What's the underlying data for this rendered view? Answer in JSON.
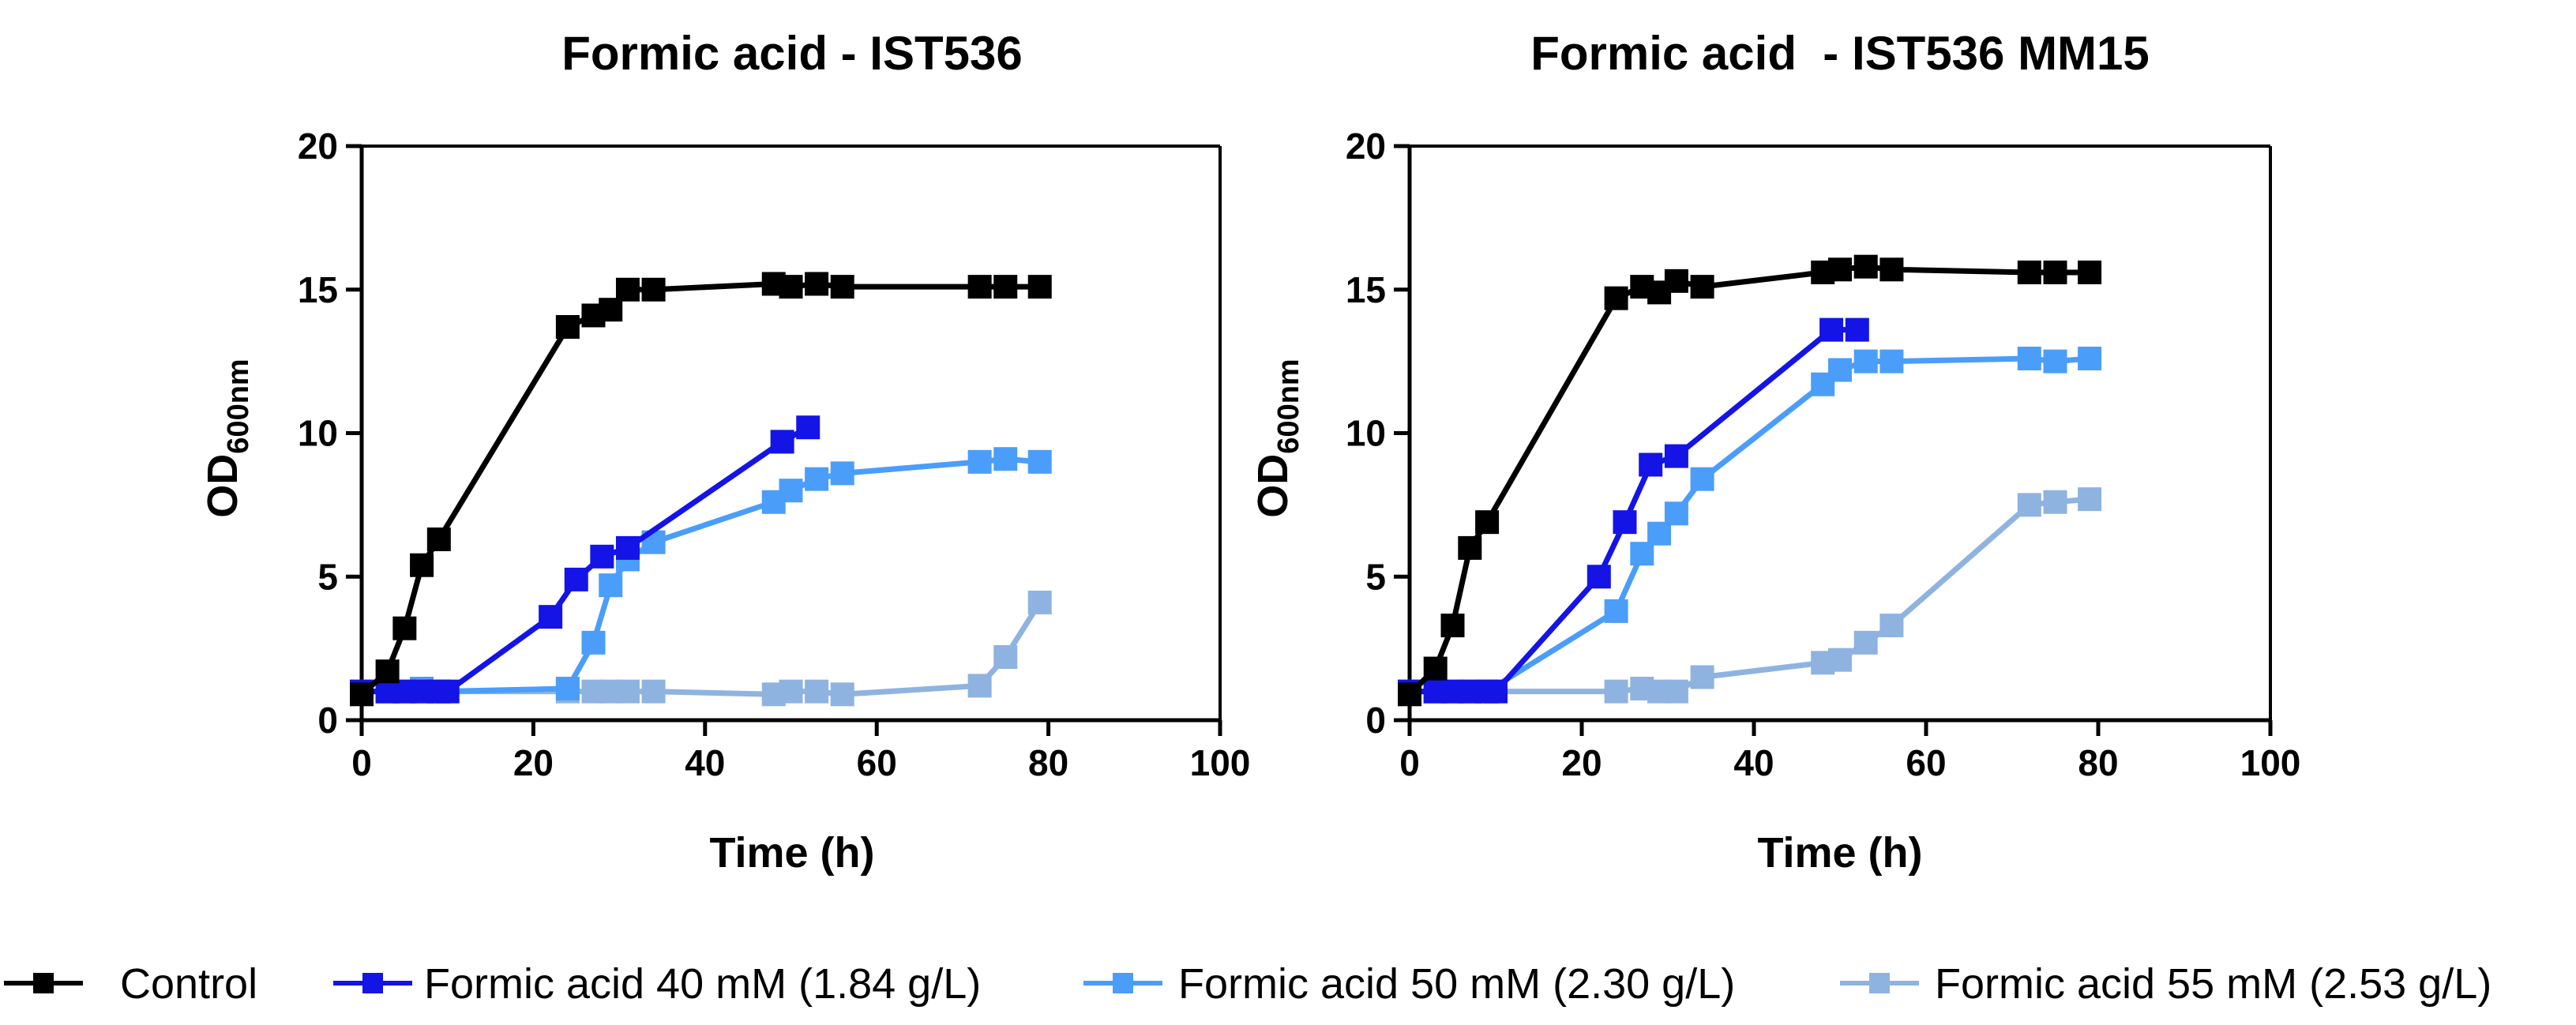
{
  "chart_data": [
    {
      "type": "line",
      "title": "Formic acid - IST536",
      "xlabel": "Time (h)",
      "ylabel_main": "OD",
      "ylabel_sub": "600nm",
      "xlim": [
        0,
        100
      ],
      "ylim": [
        0,
        20
      ],
      "xticks": [
        0,
        20,
        40,
        60,
        80,
        100
      ],
      "yticks": [
        0,
        5,
        10,
        15,
        20
      ],
      "xtick_labels": [
        "0",
        "20",
        "40",
        "60",
        "80",
        "100"
      ],
      "ytick_labels": [
        "0",
        "5",
        "10",
        "15",
        "20"
      ],
      "series": [
        {
          "name": "Control",
          "color": "#000000",
          "x": [
            0,
            3,
            5,
            7,
            9,
            24,
            27,
            29,
            31,
            34,
            48,
            50,
            53,
            56,
            72,
            75,
            79
          ],
          "y": [
            0.9,
            1.7,
            3.2,
            5.4,
            6.3,
            13.7,
            14.1,
            14.3,
            15.0,
            15.0,
            15.2,
            15.1,
            15.2,
            15.1,
            15.1,
            15.1,
            15.1
          ]
        },
        {
          "name": "Formic acid 40 mM (1.84 g/L)",
          "color": "#1414e6",
          "x": [
            0,
            3,
            5,
            7,
            9,
            10,
            22,
            25,
            28,
            31,
            49,
            52
          ],
          "y": [
            1.0,
            1.0,
            1.0,
            1.0,
            1.0,
            1.0,
            3.6,
            4.9,
            5.7,
            6.0,
            9.7,
            10.2
          ]
        },
        {
          "name": "Formic acid 50 mM (2.30 g/L)",
          "color": "#4b9dfa",
          "x": [
            0,
            3,
            5,
            7,
            9,
            24,
            27,
            29,
            31,
            34,
            48,
            50,
            53,
            56,
            72,
            75,
            79
          ],
          "y": [
            1.0,
            1.0,
            1.0,
            1.1,
            1.0,
            1.1,
            2.7,
            4.7,
            5.6,
            6.2,
            7.6,
            8.0,
            8.4,
            8.6,
            9.0,
            9.1,
            9.0
          ]
        },
        {
          "name": "Formic acid 55 mM (2.53 g/L)",
          "color": "#8fb3e0",
          "x": [
            0,
            3,
            5,
            7,
            9,
            24,
            27,
            29,
            31,
            34,
            48,
            50,
            53,
            56,
            72,
            75,
            79
          ],
          "y": [
            1.0,
            1.0,
            1.0,
            1.0,
            1.0,
            1.0,
            1.0,
            1.0,
            1.0,
            1.0,
            0.9,
            1.0,
            1.0,
            0.9,
            1.2,
            2.2,
            4.1
          ]
        }
      ]
    },
    {
      "type": "line",
      "title": "Formic acid  - IST536 MM15",
      "xlabel": "Time (h)",
      "ylabel_main": "OD",
      "ylabel_sub": "600nm",
      "xlim": [
        0,
        100
      ],
      "ylim": [
        0,
        20
      ],
      "xticks": [
        0,
        20,
        40,
        60,
        80,
        100
      ],
      "yticks": [
        0,
        5,
        10,
        15,
        20
      ],
      "xtick_labels": [
        "0",
        "20",
        "40",
        "60",
        "80",
        "100"
      ],
      "ytick_labels": [
        "0",
        "5",
        "10",
        "15",
        "20"
      ],
      "series": [
        {
          "name": "Control",
          "color": "#000000",
          "x": [
            0,
            3,
            5,
            7,
            9,
            24,
            27,
            29,
            31,
            34,
            48,
            50,
            53,
            56,
            72,
            75,
            79
          ],
          "y": [
            0.9,
            1.8,
            3.3,
            6.0,
            6.9,
            14.7,
            15.1,
            14.9,
            15.3,
            15.1,
            15.6,
            15.7,
            15.8,
            15.7,
            15.6,
            15.6,
            15.6
          ]
        },
        {
          "name": "Formic acid 40 mM (1.84 g/L)",
          "color": "#1414e6",
          "x": [
            0,
            3,
            5,
            7,
            9,
            10,
            22,
            25,
            28,
            31,
            49,
            52
          ],
          "y": [
            1.0,
            1.0,
            1.0,
            1.0,
            1.0,
            1.0,
            5.0,
            6.9,
            8.9,
            9.2,
            13.6,
            13.6
          ]
        },
        {
          "name": "Formic acid 50 mM (2.30 g/L)",
          "color": "#4b9dfa",
          "x": [
            0,
            3,
            5,
            7,
            9,
            24,
            27,
            29,
            31,
            34,
            48,
            50,
            53,
            56,
            72,
            75,
            79
          ],
          "y": [
            1.0,
            1.0,
            1.0,
            1.0,
            1.0,
            3.8,
            5.8,
            6.5,
            7.2,
            8.4,
            11.7,
            12.2,
            12.5,
            12.5,
            12.6,
            12.5,
            12.6
          ]
        },
        {
          "name": "Formic acid 55 mM (2.53 g/L)",
          "color": "#8fb3e0",
          "x": [
            0,
            3,
            5,
            7,
            9,
            24,
            27,
            29,
            31,
            34,
            48,
            50,
            53,
            56,
            72,
            75,
            79
          ],
          "y": [
            1.0,
            1.0,
            1.0,
            1.0,
            1.0,
            1.0,
            1.1,
            1.0,
            1.0,
            1.5,
            2.0,
            2.1,
            2.7,
            3.3,
            7.5,
            7.6,
            7.7
          ]
        }
      ]
    }
  ],
  "legend": [
    {
      "label": "Control",
      "color": "#000000"
    },
    {
      "label": "Formic acid 40 mM (1.84 g/L)",
      "color": "#1414e6"
    },
    {
      "label": "Formic acid 50 mM (2.30 g/L)",
      "color": "#4b9dfa"
    },
    {
      "label": "Formic acid 55 mM (2.53 g/L)",
      "color": "#8fb3e0"
    }
  ]
}
